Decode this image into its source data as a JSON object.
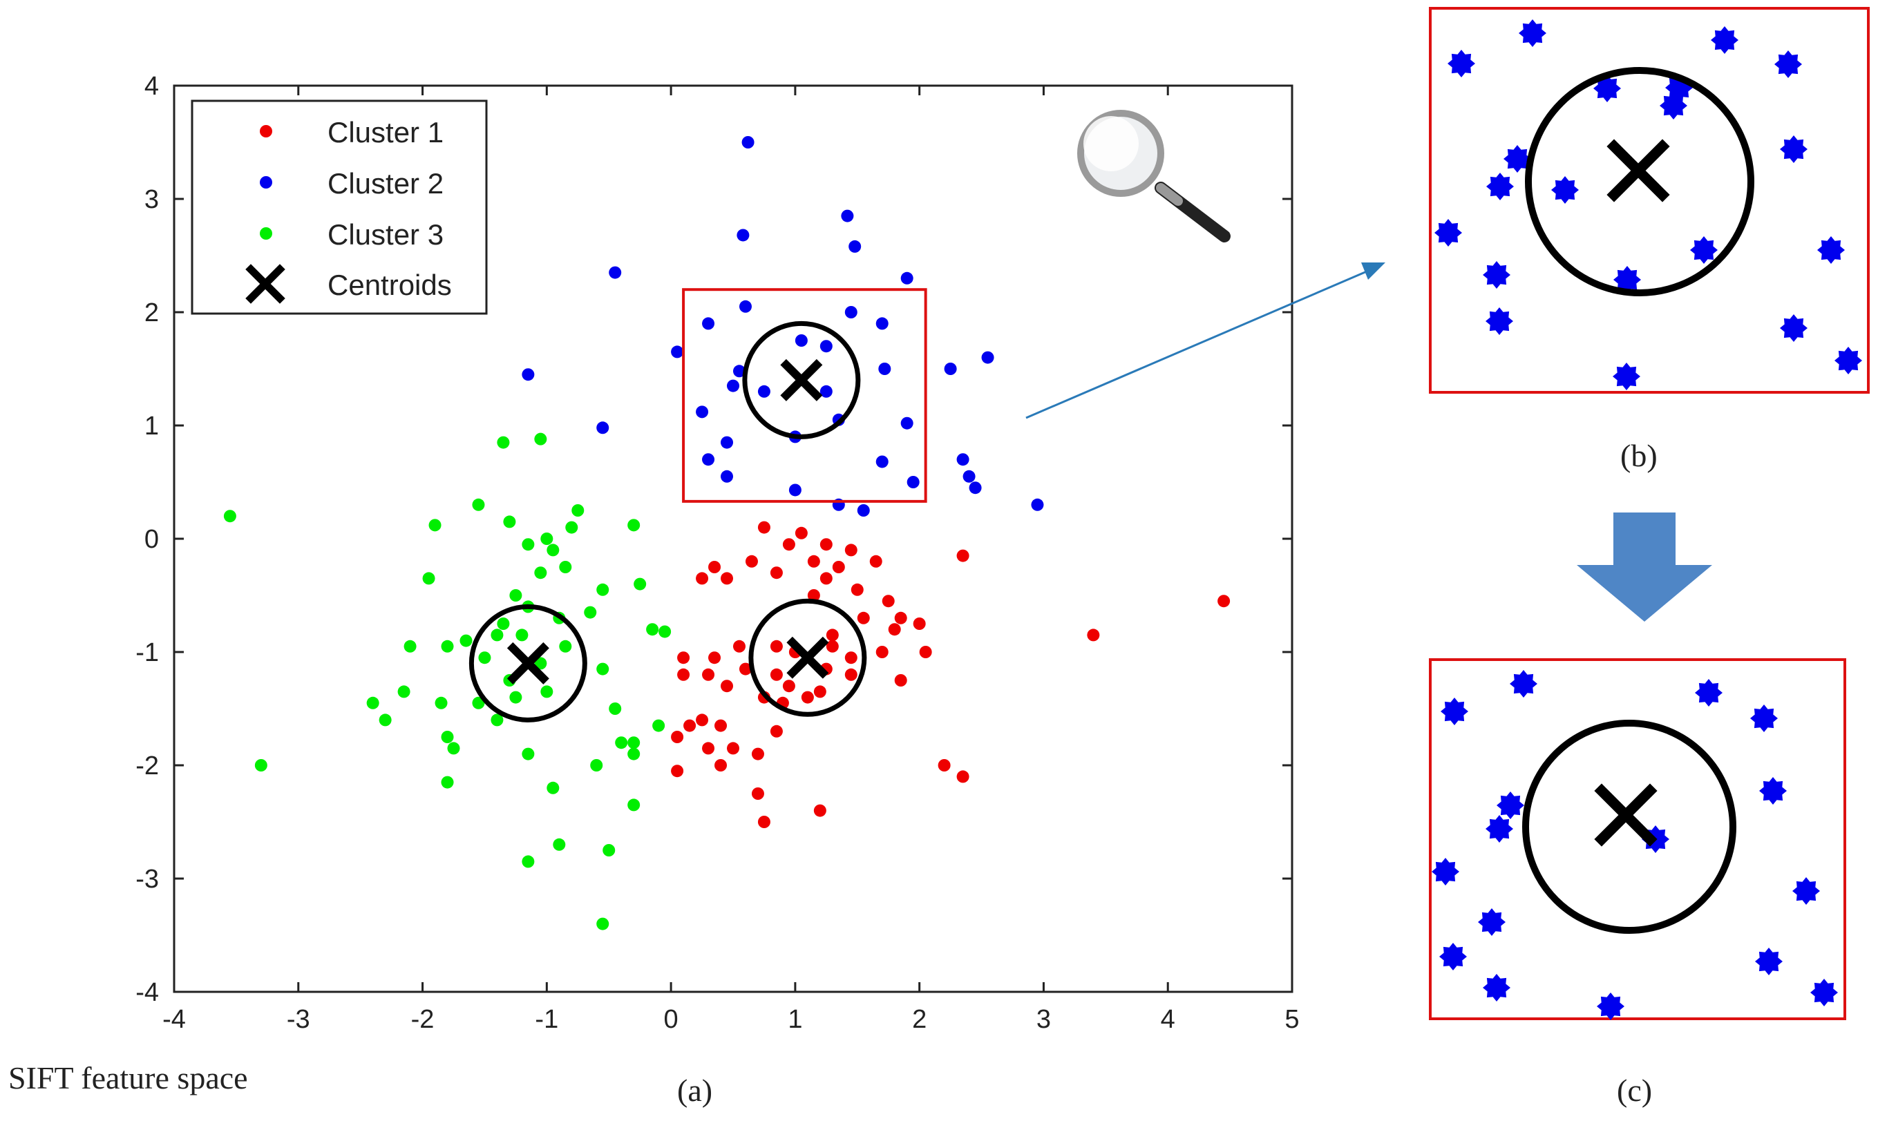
{
  "captions": {
    "a": "(a)",
    "b": "(b)",
    "c": "(c)",
    "space": "SIFT feature space"
  },
  "colors": {
    "cluster1": "#ee0000",
    "cluster2": "#0000ee",
    "cluster3": "#00ee00",
    "highlight_box": "#dd1111",
    "arrow_line": "#2a7ab8",
    "block_arrow": "#4f86c6"
  },
  "icons": {
    "magnifier": "magnifier-icon",
    "down_arrow": "down-arrow-icon"
  },
  "chart_data": {
    "type": "scatter",
    "xlim": [
      -4,
      5
    ],
    "ylim": [
      -4,
      4
    ],
    "x_ticks": [
      "-4",
      "-3",
      "-2",
      "-1",
      "0",
      "1",
      "2",
      "3",
      "4",
      "5"
    ],
    "y_ticks": [
      "4",
      "3",
      "2",
      "1",
      "0",
      "-1",
      "-2",
      "-3",
      "-4"
    ],
    "legend_position": "top-left",
    "legend": [
      "Cluster 1",
      "Cluster 2",
      "Cluster 3",
      "Centroids"
    ],
    "series": [
      {
        "name": "Cluster 1",
        "points": [
          [
            0.75,
            0.1
          ],
          [
            1.05,
            0.05
          ],
          [
            0.95,
            -0.05
          ],
          [
            1.25,
            -0.05
          ],
          [
            1.45,
            -0.1
          ],
          [
            0.35,
            -0.25
          ],
          [
            0.65,
            -0.2
          ],
          [
            1.15,
            -0.2
          ],
          [
            1.35,
            -0.25
          ],
          [
            1.65,
            -0.2
          ],
          [
            0.25,
            -0.35
          ],
          [
            0.45,
            -0.35
          ],
          [
            0.85,
            -0.3
          ],
          [
            1.25,
            -0.35
          ],
          [
            1.15,
            -0.5
          ],
          [
            1.5,
            -0.45
          ],
          [
            1.75,
            -0.55
          ],
          [
            1.85,
            -0.7
          ],
          [
            2.0,
            -0.75
          ],
          [
            1.8,
            -0.8
          ],
          [
            0.1,
            -1.05
          ],
          [
            0.35,
            -1.05
          ],
          [
            0.55,
            -0.95
          ],
          [
            0.85,
            -0.95
          ],
          [
            1.3,
            -0.95
          ],
          [
            1.45,
            -1.05
          ],
          [
            1.7,
            -1.0
          ],
          [
            2.05,
            -1.0
          ],
          [
            0.1,
            -1.2
          ],
          [
            0.3,
            -1.2
          ],
          [
            0.6,
            -1.15
          ],
          [
            0.85,
            -1.2
          ],
          [
            1.25,
            -1.15
          ],
          [
            1.45,
            -1.2
          ],
          [
            0.45,
            -1.3
          ],
          [
            0.95,
            -1.3
          ],
          [
            1.2,
            -1.35
          ],
          [
            1.85,
            -1.25
          ],
          [
            0.75,
            -1.4
          ],
          [
            0.9,
            -1.45
          ],
          [
            1.1,
            -1.4
          ],
          [
            0.15,
            -1.65
          ],
          [
            0.25,
            -1.6
          ],
          [
            0.4,
            -1.65
          ],
          [
            0.85,
            -1.7
          ],
          [
            0.05,
            -1.75
          ],
          [
            0.3,
            -1.85
          ],
          [
            0.5,
            -1.85
          ],
          [
            0.7,
            -1.9
          ],
          [
            0.4,
            -2.0
          ],
          [
            0.05,
            -2.05
          ],
          [
            2.2,
            -2.0
          ],
          [
            2.35,
            -2.1
          ],
          [
            0.7,
            -2.25
          ],
          [
            0.75,
            -2.5
          ],
          [
            1.2,
            -2.4
          ],
          [
            2.35,
            -0.15
          ],
          [
            3.4,
            -0.85
          ],
          [
            4.45,
            -0.55
          ],
          [
            1.55,
            -0.7
          ],
          [
            1.3,
            -0.85
          ],
          [
            1.0,
            -1.0
          ]
        ]
      },
      {
        "name": "Cluster 2",
        "points": [
          [
            0.62,
            3.5
          ],
          [
            1.42,
            2.85
          ],
          [
            0.58,
            2.68
          ],
          [
            1.48,
            2.58
          ],
          [
            -0.45,
            2.35
          ],
          [
            1.9,
            2.3
          ],
          [
            0.6,
            2.05
          ],
          [
            1.45,
            2.0
          ],
          [
            0.3,
            1.9
          ],
          [
            1.05,
            1.75
          ],
          [
            1.7,
            1.9
          ],
          [
            0.05,
            1.65
          ],
          [
            1.25,
            1.7
          ],
          [
            2.55,
            1.6
          ],
          [
            0.55,
            1.48
          ],
          [
            1.72,
            1.5
          ],
          [
            2.25,
            1.5
          ],
          [
            -1.15,
            1.45
          ],
          [
            0.5,
            1.35
          ],
          [
            0.75,
            1.3
          ],
          [
            1.25,
            1.3
          ],
          [
            0.25,
            1.12
          ],
          [
            1.35,
            1.05
          ],
          [
            1.9,
            1.02
          ],
          [
            -0.55,
            0.98
          ],
          [
            1.0,
            0.9
          ],
          [
            0.45,
            0.85
          ],
          [
            0.3,
            0.7
          ],
          [
            1.7,
            0.68
          ],
          [
            2.35,
            0.7
          ],
          [
            0.45,
            0.55
          ],
          [
            1.95,
            0.5
          ],
          [
            2.4,
            0.55
          ],
          [
            2.45,
            0.45
          ],
          [
            1.0,
            0.43
          ],
          [
            1.35,
            0.3
          ],
          [
            1.55,
            0.25
          ],
          [
            2.95,
            0.3
          ]
        ]
      },
      {
        "name": "Cluster 3",
        "points": [
          [
            -3.55,
            0.2
          ],
          [
            -1.55,
            0.3
          ],
          [
            -0.75,
            0.25
          ],
          [
            -0.8,
            0.1
          ],
          [
            -1.9,
            0.12
          ],
          [
            -1.3,
            0.15
          ],
          [
            -0.3,
            0.12
          ],
          [
            -1.0,
            0.0
          ],
          [
            -1.15,
            -0.05
          ],
          [
            -0.95,
            -0.1
          ],
          [
            -0.85,
            -0.25
          ],
          [
            -1.05,
            -0.3
          ],
          [
            -1.95,
            -0.35
          ],
          [
            -0.55,
            -0.45
          ],
          [
            -0.25,
            -0.4
          ],
          [
            -1.25,
            -0.5
          ],
          [
            -1.15,
            -0.6
          ],
          [
            -0.65,
            -0.65
          ],
          [
            -0.9,
            -0.7
          ],
          [
            -1.35,
            -0.75
          ],
          [
            -0.15,
            -0.8
          ],
          [
            -0.05,
            -0.82
          ],
          [
            -1.65,
            -0.9
          ],
          [
            -1.4,
            -0.85
          ],
          [
            -1.2,
            -0.85
          ],
          [
            -1.8,
            -0.95
          ],
          [
            -2.1,
            -0.95
          ],
          [
            -0.85,
            -0.95
          ],
          [
            -1.5,
            -1.05
          ],
          [
            -1.05,
            -1.1
          ],
          [
            -1.3,
            -1.25
          ],
          [
            -0.55,
            -1.15
          ],
          [
            -1.0,
            -1.35
          ],
          [
            -2.15,
            -1.35
          ],
          [
            -1.25,
            -1.4
          ],
          [
            -1.55,
            -1.45
          ],
          [
            -2.4,
            -1.45
          ],
          [
            -1.85,
            -1.45
          ],
          [
            -0.45,
            -1.5
          ],
          [
            -1.4,
            -1.6
          ],
          [
            -2.3,
            -1.6
          ],
          [
            -0.1,
            -1.65
          ],
          [
            -1.8,
            -1.75
          ],
          [
            -0.4,
            -1.8
          ],
          [
            -0.3,
            -1.8
          ],
          [
            -1.75,
            -1.85
          ],
          [
            -1.15,
            -1.9
          ],
          [
            -0.3,
            -1.9
          ],
          [
            -0.6,
            -2.0
          ],
          [
            -3.3,
            -2.0
          ],
          [
            -1.8,
            -2.15
          ],
          [
            -0.95,
            -2.2
          ],
          [
            -0.3,
            -2.35
          ],
          [
            -0.9,
            -2.7
          ],
          [
            -0.5,
            -2.75
          ],
          [
            -1.15,
            -2.85
          ],
          [
            -0.55,
            -3.4
          ],
          [
            -1.35,
            0.85
          ],
          [
            -1.05,
            0.88
          ]
        ]
      }
    ],
    "centroids": [
      [
        1.05,
        1.4
      ],
      [
        -1.15,
        -1.1
      ],
      [
        1.1,
        -1.05
      ]
    ],
    "highlight_region": {
      "x": [
        0.1,
        2.05
      ],
      "y": [
        0.33,
        2.2
      ]
    }
  }
}
